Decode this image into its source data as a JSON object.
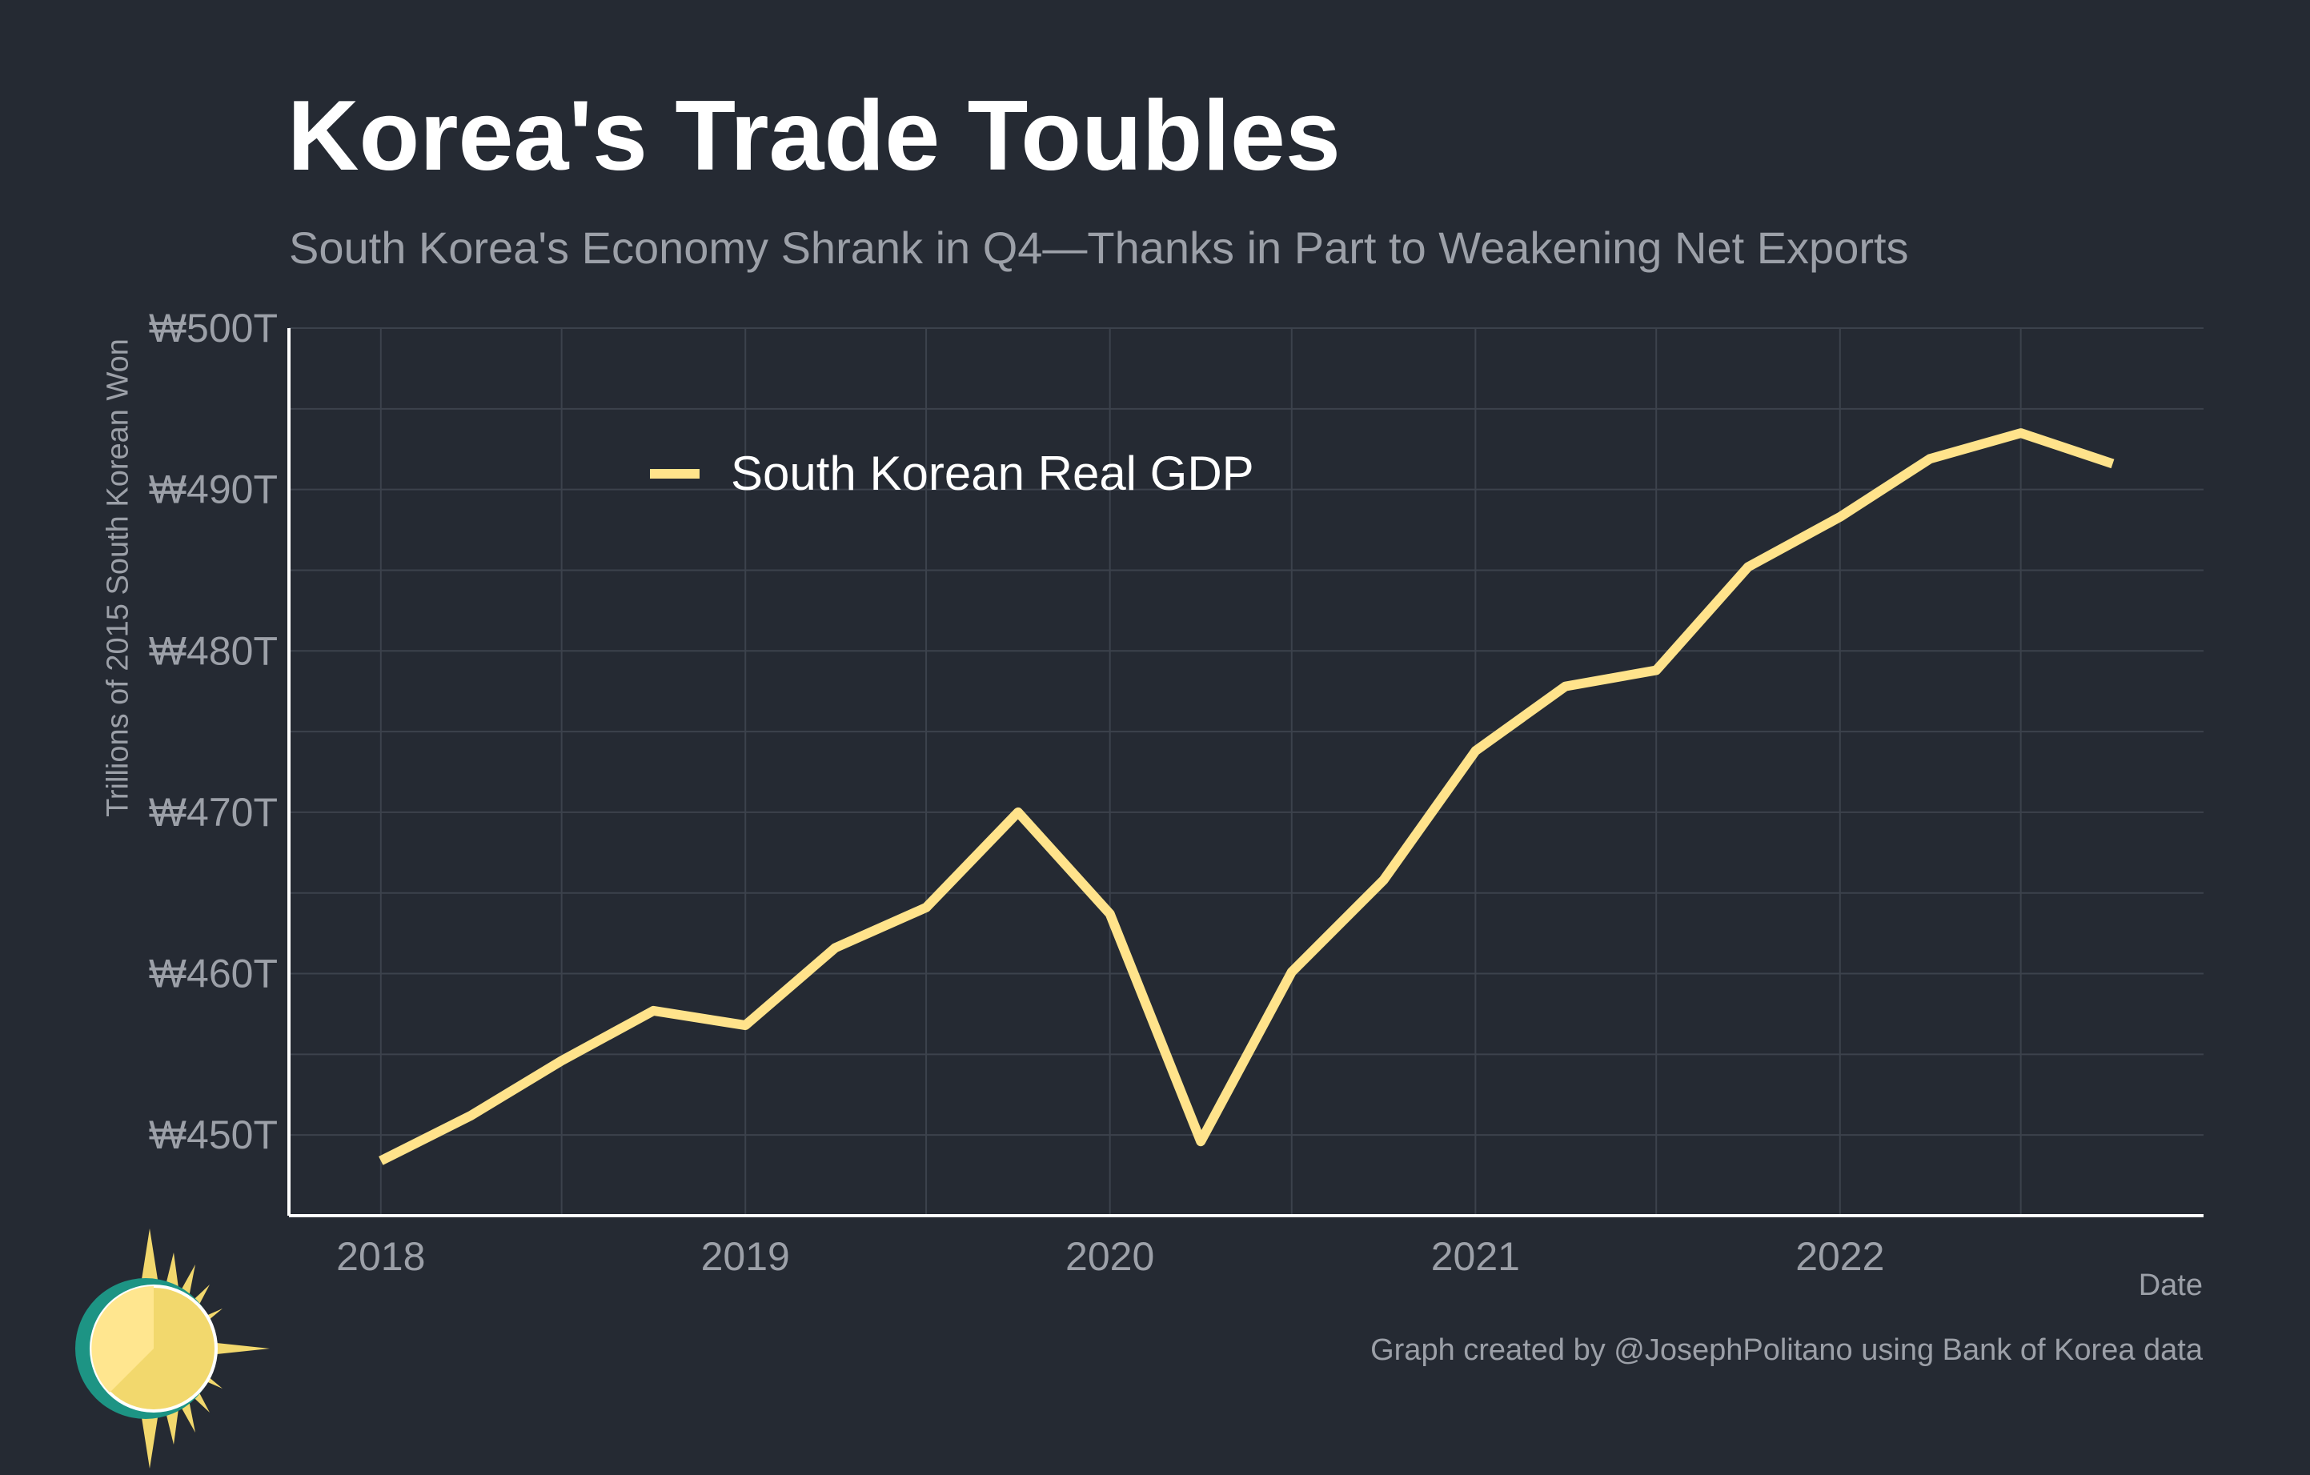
{
  "title": "Korea's Trade Toubles",
  "subtitle": "South Korea's Economy Shrank in Q4—Thanks in Part to Weakening Net Exports",
  "caption": "Graph created by @JosephPolitano using Bank of Korea data",
  "logo_icon": "sun-logo-icon",
  "colors": {
    "background": "#252a33",
    "grid": "#3c424c",
    "axis": "#ffffff",
    "text_muted": "#9ca0a8",
    "series": "#ffe38b"
  },
  "chart_data": {
    "type": "line",
    "xlabel": "Date",
    "ylabel": "Trillions of 2015 South Korean Won",
    "xlim": [
      "2017-10-01",
      "2022-12-31"
    ],
    "ylim": [
      445,
      500
    ],
    "y_ticks": [
      {
        "value": 450,
        "label": "₩450T"
      },
      {
        "value": 460,
        "label": "₩460T"
      },
      {
        "value": 470,
        "label": "₩470T"
      },
      {
        "value": 480,
        "label": "₩480T"
      },
      {
        "value": 490,
        "label": "₩490T"
      },
      {
        "value": 500,
        "label": "₩500T"
      }
    ],
    "x_ticks": [
      {
        "value": "2018-01-01",
        "label": "2018"
      },
      {
        "value": "2019-01-01",
        "label": "2019"
      },
      {
        "value": "2020-01-01",
        "label": "2020"
      },
      {
        "value": "2021-01-01",
        "label": "2021"
      },
      {
        "value": "2022-01-01",
        "label": "2022"
      }
    ],
    "grid": true,
    "legend": {
      "position": "top-left"
    },
    "series": [
      {
        "name": "South Korean Real GDP",
        "color": "#ffe38b",
        "points": [
          {
            "x": "2018-01-01",
            "y": 448.4
          },
          {
            "x": "2018-04-01",
            "y": 451.2
          },
          {
            "x": "2018-07-01",
            "y": 454.6
          },
          {
            "x": "2018-10-01",
            "y": 457.7
          },
          {
            "x": "2019-01-01",
            "y": 456.8
          },
          {
            "x": "2019-04-01",
            "y": 461.6
          },
          {
            "x": "2019-07-01",
            "y": 464.1
          },
          {
            "x": "2019-10-01",
            "y": 470.0
          },
          {
            "x": "2020-01-01",
            "y": 463.7
          },
          {
            "x": "2020-04-01",
            "y": 449.6
          },
          {
            "x": "2020-07-01",
            "y": 460.1
          },
          {
            "x": "2020-10-01",
            "y": 465.8
          },
          {
            "x": "2021-01-01",
            "y": 473.8
          },
          {
            "x": "2021-04-01",
            "y": 477.8
          },
          {
            "x": "2021-07-01",
            "y": 478.8
          },
          {
            "x": "2021-10-01",
            "y": 485.2
          },
          {
            "x": "2022-01-01",
            "y": 488.3
          },
          {
            "x": "2022-04-01",
            "y": 491.9
          },
          {
            "x": "2022-07-01",
            "y": 493.5
          },
          {
            "x": "2022-10-01",
            "y": 491.6
          }
        ]
      }
    ]
  }
}
